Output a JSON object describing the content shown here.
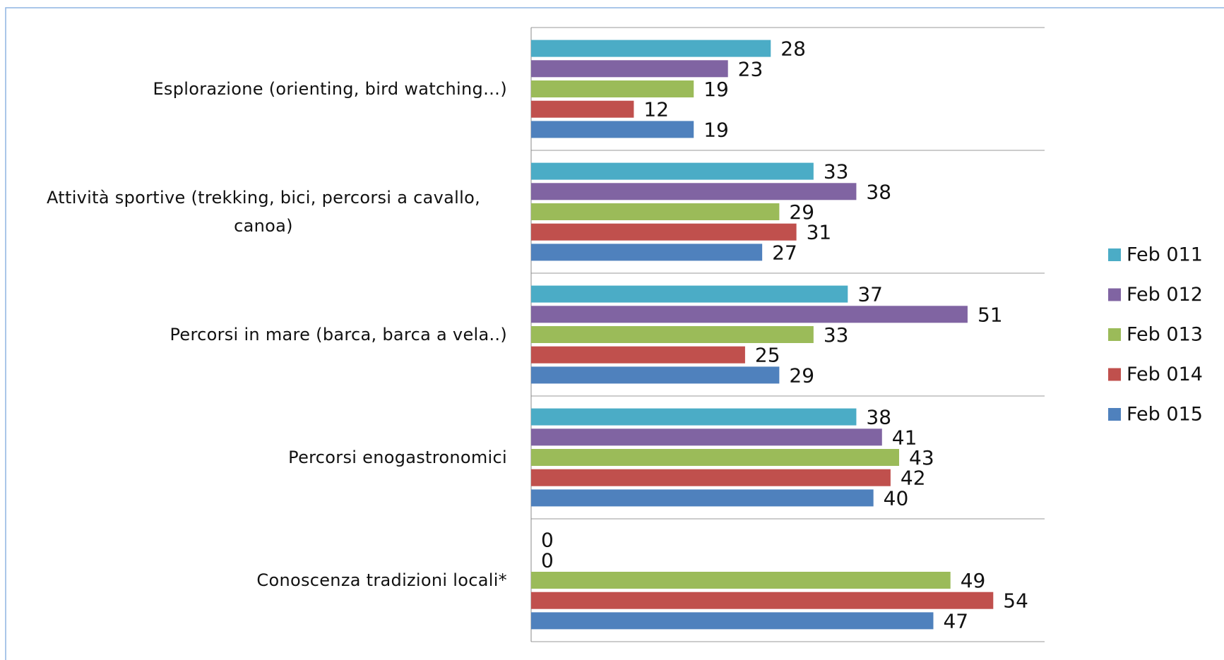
{
  "chart_data": {
    "type": "hbar",
    "categories": [
      "Esplorazione (orienting, bird watching…)",
      "Attività sportive (trekking, bici, percorsi a cavallo, canoa)",
      "Percorsi in mare (barca, barca a vela..)",
      "Percorsi enogastronomici",
      "Conoscenza tradizioni locali*"
    ],
    "series": [
      {
        "name": "Feb 011",
        "color": "#4bacc6",
        "values": [
          28,
          33,
          37,
          38,
          0
        ]
      },
      {
        "name": "Feb 012",
        "color": "#8064a2",
        "values": [
          23,
          38,
          51,
          41,
          0
        ]
      },
      {
        "name": "Feb 013",
        "color": "#9bbb59",
        "values": [
          19,
          29,
          33,
          43,
          49
        ]
      },
      {
        "name": "Feb 014",
        "color": "#c0504d",
        "values": [
          12,
          31,
          25,
          42,
          54
        ]
      },
      {
        "name": "Feb 015",
        "color": "#4f81bd",
        "values": [
          19,
          27,
          29,
          40,
          47
        ]
      }
    ],
    "xlim": [
      0,
      60
    ],
    "legend": "right"
  }
}
